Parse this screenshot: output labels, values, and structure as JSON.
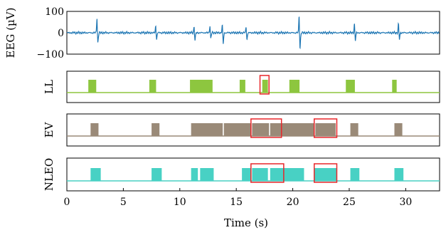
{
  "chart_data": {
    "type": "line",
    "xlabel": "Time (s)",
    "xlim": [
      0,
      33
    ],
    "x_ticks": [
      0,
      5,
      10,
      15,
      20,
      25,
      30
    ],
    "colors": {
      "eeg": "#1f77b4",
      "ll": "#8dc63f",
      "ev": "#9a8a78",
      "nleo": "#48d1c4",
      "highlight": "#e8262a"
    },
    "panels": [
      {
        "id": "eeg",
        "ylabel": "EEG (µV)",
        "ylim": [
          -100,
          100
        ],
        "y_ticks": [
          100,
          0,
          -100
        ],
        "y_tick_labels": [
          "100",
          "0",
          "−100"
        ],
        "spikes": [
          {
            "t": 2.7,
            "up": 65,
            "down": -45
          },
          {
            "t": 7.9,
            "up": 30,
            "down": -30
          },
          {
            "t": 11.3,
            "up": 25,
            "down": -35
          },
          {
            "t": 12.7,
            "up": 30,
            "down": -25
          },
          {
            "t": 13.8,
            "up": 35,
            "down": -50
          },
          {
            "t": 15.9,
            "up": 25,
            "down": -30
          },
          {
            "t": 20.6,
            "up": 75,
            "down": -70
          },
          {
            "t": 25.5,
            "up": 40,
            "down": -35
          },
          {
            "t": 29.4,
            "up": 40,
            "down": -30
          }
        ]
      },
      {
        "id": "ll",
        "ylabel": "LL",
        "segments": [
          [
            1.9,
            2.6
          ],
          [
            7.3,
            7.9
          ],
          [
            10.9,
            12.9
          ],
          [
            15.3,
            15.8
          ],
          [
            17.3,
            17.8
          ],
          [
            19.7,
            20.6
          ],
          [
            24.7,
            25.5
          ],
          [
            28.8,
            29.2
          ]
        ],
        "highlights": [
          [
            17.1,
            17.9
          ]
        ]
      },
      {
        "id": "ev",
        "ylabel": "EV",
        "segments": [
          [
            2.1,
            2.8
          ],
          [
            7.5,
            8.2
          ],
          [
            11.0,
            13.8
          ],
          [
            13.9,
            16.3
          ],
          [
            16.4,
            17.9
          ],
          [
            18.0,
            21.9
          ],
          [
            22.0,
            23.8
          ],
          [
            25.1,
            25.8
          ],
          [
            29.0,
            29.7
          ]
        ],
        "highlights": [
          [
            16.3,
            19.0
          ],
          [
            21.9,
            23.9
          ]
        ]
      },
      {
        "id": "nleo",
        "ylabel": "NLEO",
        "segments": [
          [
            2.1,
            3.0
          ],
          [
            7.5,
            8.4
          ],
          [
            11.0,
            11.6
          ],
          [
            11.8,
            13.0
          ],
          [
            15.5,
            16.3
          ],
          [
            16.4,
            17.8
          ],
          [
            18.0,
            21.0
          ],
          [
            21.9,
            23.9
          ],
          [
            25.1,
            25.9
          ],
          [
            29.0,
            29.8
          ]
        ],
        "highlights": [
          [
            16.3,
            19.2
          ],
          [
            21.9,
            23.9
          ]
        ]
      }
    ]
  }
}
